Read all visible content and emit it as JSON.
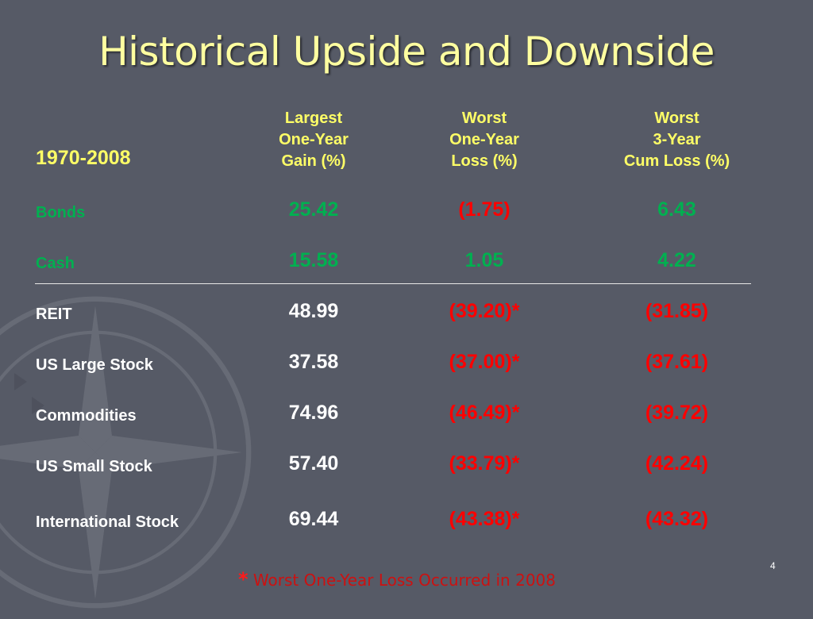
{
  "title": "Historical Upside and Downside",
  "period": "1970-2008",
  "columns": [
    {
      "line1": "Largest",
      "line2": "One-Year",
      "line3": "Gain (%)"
    },
    {
      "line1": "Worst",
      "line2": "One-Year",
      "line3": "Loss (%)"
    },
    {
      "line1": "Worst",
      "line2": "3-Year",
      "line3": "Cum Loss (%)"
    }
  ],
  "rows": [
    {
      "label": "Bonds",
      "v1": "25.42",
      "v2": "(1.75)",
      "v3": "6.43"
    },
    {
      "label": "Cash",
      "v1": "15.58",
      "v2": "1.05",
      "v3": "4.22"
    },
    {
      "label": "REIT",
      "v1": "48.99",
      "v2": "(39.20)*",
      "v3": "(31.85)"
    },
    {
      "label": "US Large Stock",
      "v1": "37.58",
      "v2": "(37.00)*",
      "v3": "(37.61)"
    },
    {
      "label": "Commodities",
      "v1": "74.96",
      "v2": "(46.49)*",
      "v3": "(39.72)"
    },
    {
      "label": "US Small Stock",
      "v1": "57.40",
      "v2": "(33.79)*",
      "v3": "(42.24)"
    },
    {
      "label": "International Stock",
      "v1": "69.44",
      "v2": "(43.38)*",
      "v3": "(43.32)"
    }
  ],
  "footnote": {
    "star": "*",
    "text": " Worst One-Year Loss Occurred in 2008"
  },
  "page_number": "4",
  "colors": {
    "background": "#565a66",
    "title": "#ffffa0",
    "header": "#ffff66",
    "green": "#00b050",
    "red": "#ff0000",
    "white": "#ffffff"
  }
}
